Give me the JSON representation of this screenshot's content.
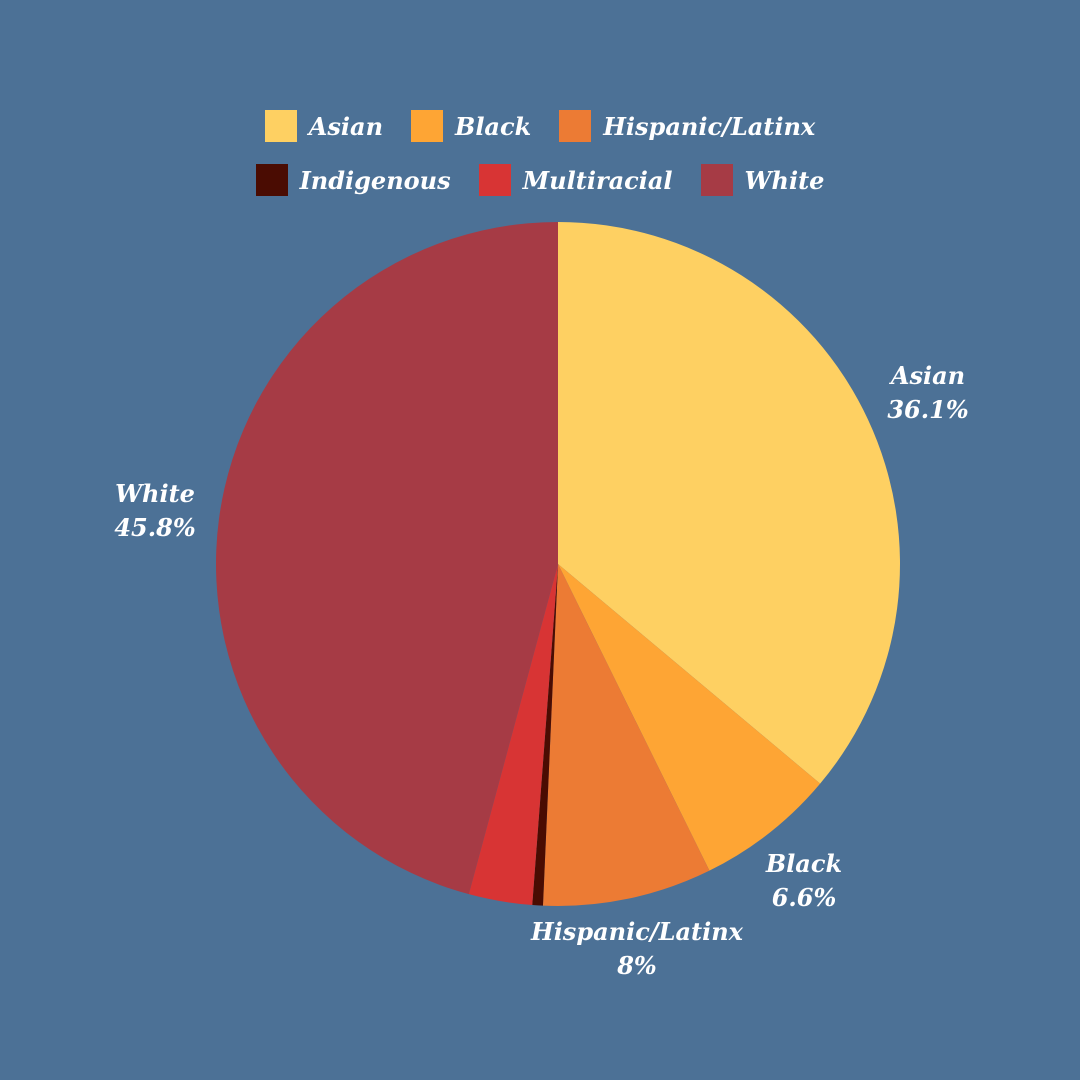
{
  "background": "#4c7196",
  "chart_data": {
    "type": "pie",
    "title": "",
    "legend_position": "top",
    "start_angle_deg": 0,
    "direction": "clockwise",
    "slices": [
      {
        "label": "Asian",
        "value": 36.1,
        "display": "36.1%",
        "color": "#fed062",
        "show_label": true
      },
      {
        "label": "Black",
        "value": 6.6,
        "display": "6.6%",
        "color": "#fea534",
        "show_label": true
      },
      {
        "label": "Hispanic/Latinx",
        "value": 8,
        "display": "8%",
        "color": "#ec7b34",
        "show_label": true
      },
      {
        "label": "Indigenous",
        "value": 0.5,
        "display": "",
        "color": "#4a0c02",
        "show_label": false
      },
      {
        "label": "Multiracial",
        "value": 3,
        "display": "",
        "color": "#d83434",
        "show_label": false
      },
      {
        "label": "White",
        "value": 45.8,
        "display": "45.8%",
        "color": "#a63b45",
        "show_label": true
      }
    ]
  },
  "legend": {
    "rows": [
      [
        {
          "label": "Asian",
          "color": "#fed062"
        },
        {
          "label": "Black",
          "color": "#fea534"
        },
        {
          "label": "Hispanic/Latinx",
          "color": "#ec7b34"
        }
      ],
      [
        {
          "label": "Indigenous",
          "color": "#4a0c02"
        },
        {
          "label": "Multiracial",
          "color": "#d83434"
        },
        {
          "label": "White",
          "color": "#a63b45"
        }
      ]
    ]
  }
}
